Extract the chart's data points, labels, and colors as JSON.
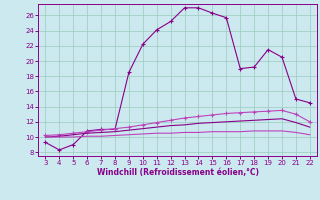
{
  "xlabel": "Windchill (Refroidissement éolien,°C)",
  "x_ticks": [
    3,
    4,
    5,
    6,
    7,
    8,
    9,
    10,
    11,
    12,
    13,
    14,
    15,
    16,
    17,
    18,
    19,
    20,
    21,
    22
  ],
  "y_ticks": [
    8,
    10,
    12,
    14,
    16,
    18,
    20,
    22,
    24,
    26
  ],
  "ylim": [
    7.5,
    27.5
  ],
  "xlim": [
    2.5,
    22.5
  ],
  "bg_color": "#cce9f0",
  "grid_color": "#99ccbb",
  "line_color": "#880088",
  "line_color2": "#bb44bb",
  "series1_x": [
    3,
    4,
    5,
    6,
    7,
    8,
    9,
    10,
    11,
    12,
    13,
    14,
    15,
    16,
    17,
    18,
    19,
    20,
    21,
    22
  ],
  "series1_y": [
    9.3,
    8.3,
    9.0,
    10.8,
    11.0,
    11.0,
    18.5,
    22.2,
    24.1,
    25.2,
    27.0,
    27.0,
    26.3,
    25.7,
    19.0,
    19.2,
    21.5,
    20.5,
    15.0,
    14.5
  ],
  "series2_x": [
    3,
    4,
    5,
    6,
    7,
    8,
    9,
    10,
    11,
    12,
    13,
    14,
    15,
    16,
    17,
    18,
    19,
    20,
    21,
    22
  ],
  "series2_y": [
    10.2,
    10.3,
    10.5,
    10.7,
    10.9,
    11.1,
    11.3,
    11.6,
    11.9,
    12.2,
    12.5,
    12.7,
    12.9,
    13.1,
    13.2,
    13.3,
    13.4,
    13.5,
    13.0,
    12.0
  ],
  "series3_x": [
    3,
    4,
    5,
    6,
    7,
    8,
    9,
    10,
    11,
    12,
    13,
    14,
    15,
    16,
    17,
    18,
    19,
    20,
    21,
    22
  ],
  "series3_y": [
    10.0,
    10.1,
    10.3,
    10.5,
    10.6,
    10.7,
    10.9,
    11.1,
    11.3,
    11.5,
    11.6,
    11.8,
    11.9,
    12.0,
    12.1,
    12.2,
    12.3,
    12.4,
    11.9,
    11.3
  ],
  "series4_x": [
    3,
    4,
    5,
    6,
    7,
    8,
    9,
    10,
    11,
    12,
    13,
    14,
    15,
    16,
    17,
    18,
    19,
    20,
    21,
    22
  ],
  "series4_y": [
    10.0,
    10.0,
    10.0,
    10.1,
    10.1,
    10.2,
    10.3,
    10.4,
    10.5,
    10.5,
    10.6,
    10.6,
    10.7,
    10.7,
    10.7,
    10.8,
    10.8,
    10.8,
    10.6,
    10.3
  ]
}
